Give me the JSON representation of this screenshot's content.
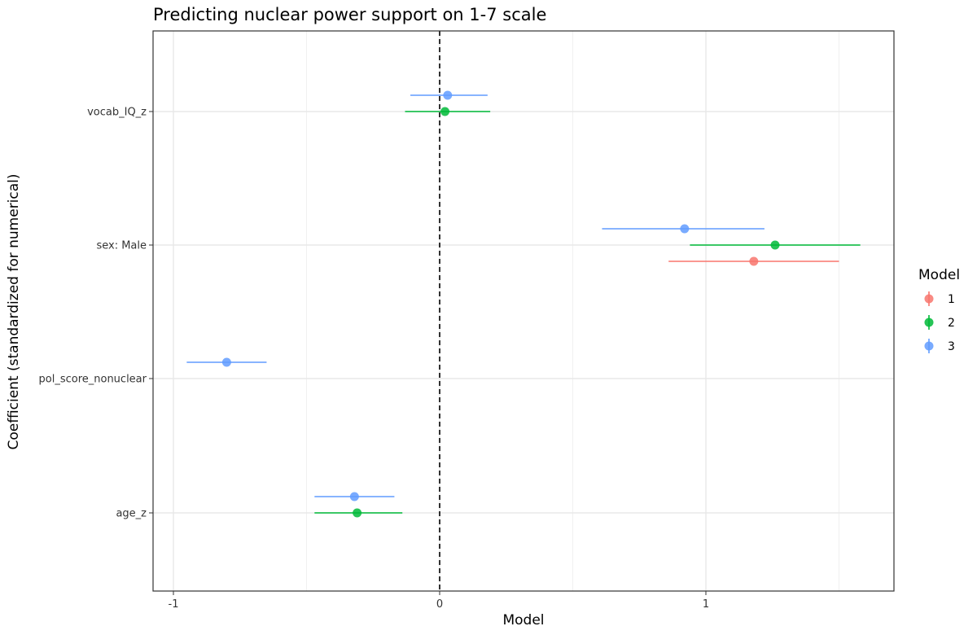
{
  "chart_data": {
    "type": "coefficient-plot",
    "title": "Predicting nuclear power support on 1-7 scale",
    "xlabel": "Model",
    "ylabel": "Coefficient (standardized for numerical)",
    "xlim": [
      -1.08,
      1.72
    ],
    "x_ticks": [
      -1,
      0,
      1
    ],
    "x_tick_labels": [
      "-1",
      "0",
      "1"
    ],
    "reference_line": 0,
    "grid": true,
    "categories": [
      "vocab_IQ_z",
      "sex: Male",
      "pol_score_nonuclear",
      "age_z"
    ],
    "legend": {
      "title": "Model",
      "position": "right"
    },
    "series": [
      {
        "name": "1",
        "color": "#F8766D",
        "points": [
          {
            "term": "sex: Male",
            "estimate": 1.18,
            "low": 0.86,
            "high": 1.5
          }
        ]
      },
      {
        "name": "2",
        "color": "#00BA38",
        "points": [
          {
            "term": "vocab_IQ_z",
            "estimate": 0.02,
            "low": -0.13,
            "high": 0.19
          },
          {
            "term": "sex: Male",
            "estimate": 1.26,
            "low": 0.94,
            "high": 1.58
          },
          {
            "term": "age_z",
            "estimate": -0.31,
            "low": -0.47,
            "high": -0.14
          }
        ]
      },
      {
        "name": "3",
        "color": "#619CFF",
        "points": [
          {
            "term": "vocab_IQ_z",
            "estimate": 0.03,
            "low": -0.11,
            "high": 0.18
          },
          {
            "term": "sex: Male",
            "estimate": 0.92,
            "low": 0.61,
            "high": 1.22
          },
          {
            "term": "pol_score_nonuclear",
            "estimate": -0.8,
            "low": -0.95,
            "high": -0.65
          },
          {
            "term": "age_z",
            "estimate": -0.32,
            "low": -0.47,
            "high": -0.17
          }
        ]
      }
    ]
  }
}
